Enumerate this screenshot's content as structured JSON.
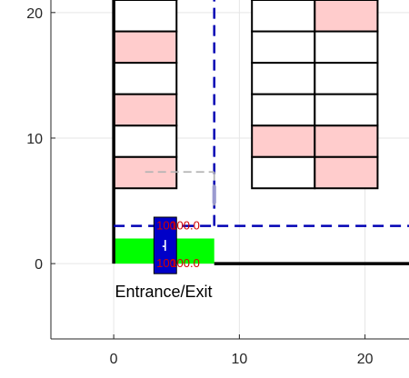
{
  "chart_data": {
    "type": "parking-map",
    "xlim": [
      -5,
      23.5
    ],
    "ylim": [
      -6,
      21
    ],
    "grid": true,
    "xticks": [
      0,
      10,
      20
    ],
    "yticks": [
      0,
      10,
      20
    ],
    "tick_labels": {
      "x": [
        "0",
        "10",
        "20"
      ],
      "y": [
        "0",
        "10",
        "20"
      ]
    },
    "annotation": {
      "text": "Entrance/Exit",
      "x": 4,
      "y": -2.2
    },
    "colors": {
      "occupied": "#ffcccc",
      "free": "#ffffff",
      "entrance": "#00ff00",
      "vehicle": "#0000c8",
      "planned_path": "#0000b4",
      "route": "#b4b4b4",
      "label": "#d40000"
    },
    "walls": [
      {
        "x": [
          0,
          0
        ],
        "y": [
          0,
          21
        ]
      },
      {
        "x": [
          8,
          23.5
        ],
        "y": [
          0,
          0
        ]
      }
    ],
    "entrance_zone": {
      "x0": 0,
      "x1": 8,
      "y0": 0,
      "y1": 2
    },
    "parking_left_column": {
      "x0": 0,
      "x1": 5,
      "y_start": 6,
      "spot_height": 2.5,
      "occupied": [
        true,
        false,
        true,
        false,
        true,
        false,
        true,
        false
      ]
    },
    "parking_right_columns": [
      {
        "x0": 11,
        "x1": 16,
        "y_start": 6,
        "spot_height": 2.5,
        "occupied": [
          false,
          true,
          false,
          false,
          false,
          false,
          true,
          false,
          true
        ]
      },
      {
        "x0": 16,
        "x1": 21,
        "y_start": 6,
        "spot_height": 2.5,
        "occupied": [
          true,
          true,
          false,
          false,
          false,
          true,
          true,
          false,
          true
        ]
      }
    ],
    "planned_path": [
      {
        "x": [
          8,
          8
        ],
        "y": [
          3,
          21
        ]
      },
      {
        "x": [
          0,
          23.5
        ],
        "y": [
          3,
          3
        ]
      }
    ],
    "route_segments": [
      {
        "x": [
          2.5,
          8
        ],
        "y": [
          7.3,
          7.3
        ]
      },
      {
        "x": [
          8,
          8
        ],
        "y": [
          7.3,
          4.5
        ]
      }
    ],
    "vehicle": {
      "x0": 3.2,
      "x1": 5,
      "y0": -0.8,
      "y1": 3.7
    },
    "vehicle_labels": [
      {
        "text": "100",
        "x": 3.4,
        "y": 3
      },
      {
        "text": "100.0",
        "x": 4.5,
        "y": 3
      },
      {
        "text": "100",
        "x": 3.4,
        "y": 0
      },
      {
        "text": "100.0",
        "x": 4.5,
        "y": 0
      }
    ]
  }
}
